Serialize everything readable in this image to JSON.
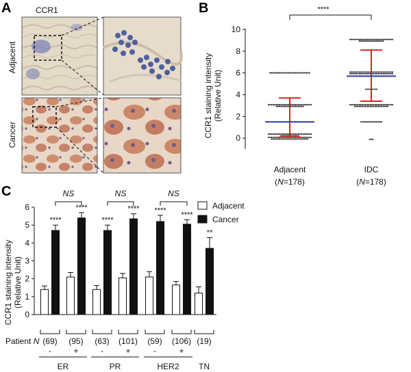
{
  "panel_a": {
    "letter": "A",
    "title": "CCR1",
    "row_labels": [
      "Adjacent",
      "Cancer"
    ]
  },
  "panel_b": {
    "letter": "B"
  },
  "panel_c": {
    "letter": "C"
  },
  "colors": {
    "adjacent_bg": "#e4dac8",
    "adjacent_tissue": "#c4b3c6",
    "adjacent_nuclei": "#4f5f9e",
    "cancer_bg": "#e8d7c6",
    "cancer_tissue": "#c9805e",
    "cancer_nuclei": "#6d5e8a",
    "mean_line": "#2a3aa8",
    "sd_line": "#e02020",
    "dots": "#222222"
  },
  "chart_data": [
    {
      "type": "scatter",
      "panel": "B",
      "ylabel_line1": "CCR1 staining intensity",
      "ylabel_line2": "(Relative Unit)",
      "ylim": [
        -1,
        10
      ],
      "yticks": [
        "0",
        "2",
        "4",
        "6",
        "8",
        "10"
      ],
      "significance": "****",
      "groups": [
        {
          "name": "Adjacent",
          "n_label": "(N=178)",
          "n_prefix": "(",
          "n_italic": "N",
          "n_rest": "=178)",
          "mean": 1.5,
          "sd_low": 0.1,
          "sd_high": 3.7,
          "dot_levels": [
            {
              "value": 6,
              "count": 26
            },
            {
              "value": 3,
              "count": 46
            },
            {
              "value": 0.3,
              "count": 40
            },
            {
              "value": 0,
              "count": 52
            }
          ]
        },
        {
          "name": "IDC",
          "n_label": "(N=178)",
          "n_prefix": "(",
          "n_italic": "N",
          "n_rest": "=178)",
          "mean": 5.7,
          "sd_low": 3.4,
          "sd_high": 8.1,
          "dot_levels": [
            {
              "value": 9,
              "count": 44
            },
            {
              "value": 6,
              "count": 56
            },
            {
              "value": 5.7,
              "count": 20
            },
            {
              "value": 4.5,
              "count": 8
            },
            {
              "value": 3,
              "count": 50
            },
            {
              "value": 1.5,
              "count": 14
            },
            {
              "value": -0.1,
              "count": 3
            }
          ]
        }
      ]
    },
    {
      "type": "bar",
      "panel": "C",
      "ylabel_line1": "CCR1 staining intensity",
      "ylabel_line2": "(Relative Unit)",
      "ylim": [
        0,
        6
      ],
      "yticks": [
        "0",
        "1",
        "2",
        "3",
        "4",
        "5",
        "6"
      ],
      "legend": [
        "Adjacent",
        "Cancer"
      ],
      "legend_position": "top-right",
      "patient_label_prefix": "Patient",
      "patient_label_italic": "N",
      "groups": [
        {
          "receptor": "ER",
          "status": "-",
          "n": "(69)",
          "adjacent": 1.4,
          "adjacent_err": 0.2,
          "cancer": 4.7,
          "cancer_err": 0.3,
          "sig": "****"
        },
        {
          "receptor": "ER",
          "status": "+",
          "n": "(95)",
          "adjacent": 2.1,
          "adjacent_err": 0.25,
          "cancer": 5.4,
          "cancer_err": 0.3,
          "sig": "****"
        },
        {
          "receptor": "PR",
          "status": "-",
          "n": "(63)",
          "adjacent": 1.4,
          "adjacent_err": 0.22,
          "cancer": 4.7,
          "cancer_err": 0.3,
          "sig": "****"
        },
        {
          "receptor": "PR",
          "status": "+",
          "n": "(101)",
          "adjacent": 2.05,
          "adjacent_err": 0.25,
          "cancer": 5.35,
          "cancer_err": 0.28,
          "sig": "****"
        },
        {
          "receptor": "HER2",
          "status": "-",
          "n": "(59)",
          "adjacent": 2.1,
          "adjacent_err": 0.3,
          "cancer": 5.2,
          "cancer_err": 0.35,
          "sig": "****"
        },
        {
          "receptor": "HER2",
          "status": "+",
          "n": "(106)",
          "adjacent": 1.65,
          "adjacent_err": 0.2,
          "cancer": 5.05,
          "cancer_err": 0.25,
          "sig": "****"
        },
        {
          "receptor": "TN",
          "status": "",
          "n": "(19)",
          "adjacent": 1.2,
          "adjacent_err": 0.35,
          "cancer": 3.7,
          "cancer_err": 0.6,
          "sig": "**"
        }
      ],
      "comparisons": [
        {
          "receptor": "ER",
          "label": "NS"
        },
        {
          "receptor": "PR",
          "label": "NS"
        },
        {
          "receptor": "HER2",
          "label": "NS"
        }
      ],
      "receptor_labels": [
        "ER",
        "PR",
        "HER2",
        "TN"
      ]
    }
  ]
}
